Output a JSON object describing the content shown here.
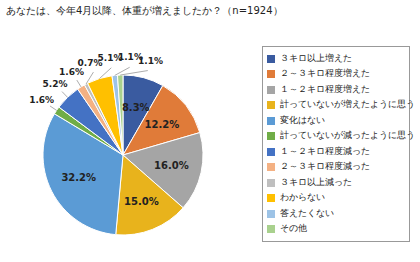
{
  "chart_data": {
    "type": "pie",
    "title": "あなたは、今年4月以降、体重が増えましたか？（n=1924）",
    "categories": [
      "３キロ以上増えた",
      "２～３キロ程度増えた",
      "１～２キロ程度増えた",
      "計っていないが増えたように思う",
      "変化はない",
      "計っていないが減ったように思う",
      "１～２キロ程度減った",
      "２～３キロ程度減った",
      "３キロ以上減った",
      "わからない",
      "答えたくない",
      "その他"
    ],
    "values": [
      8.3,
      12.2,
      16.0,
      15.0,
      32.2,
      1.6,
      5.2,
      1.6,
      0.7,
      5.1,
      1.1,
      1.1
    ],
    "value_labels": [
      "8.3%",
      "12.2%",
      "16.0%",
      "15.0%",
      "32.2%",
      "1.6%",
      "5.2%",
      "1.6%",
      "0.7%",
      "5.1%",
      "1.1%",
      "1.1%"
    ],
    "colors": [
      "#3A5BA0",
      "#E07B39",
      "#A5A5A5",
      "#E8B31C",
      "#5B9BD5",
      "#70AD47",
      "#4472C4",
      "#F4B183",
      "#BFBFBF",
      "#FFC000",
      "#9DC3E6",
      "#A9D18E"
    ],
    "data_labels": true,
    "legend": "right"
  }
}
